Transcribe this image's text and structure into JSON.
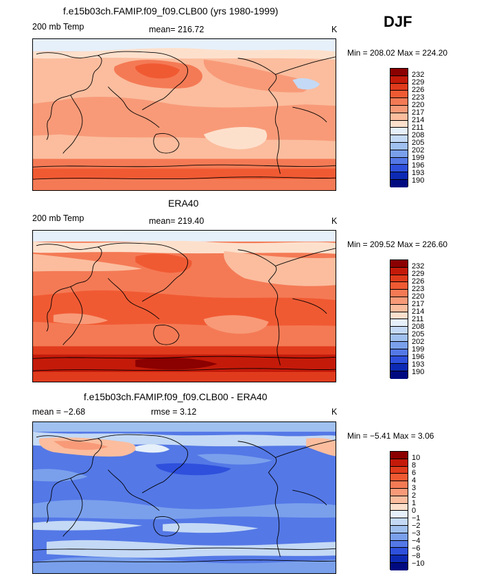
{
  "season": "DJF",
  "panels": [
    {
      "title": "f.e15b03ch.FAMIP.f09_f09.CLB00 (yrs 1980-1999)",
      "left_label": "200 mb Temp",
      "center_label": "mean= 216.72",
      "right_label": "K",
      "minmax": "Min = 208.02 Max = 224.20",
      "colorbar_labels": [
        "232",
        "229",
        "226",
        "223",
        "220",
        "217",
        "214",
        "211",
        "208",
        "205",
        "202",
        "199",
        "196",
        "193",
        "190"
      ]
    },
    {
      "title": "ERA40",
      "left_label": "200 mb Temp",
      "center_label": "mean= 219.40",
      "right_label": "K",
      "minmax": "Min = 209.52 Max = 226.60",
      "colorbar_labels": [
        "232",
        "229",
        "226",
        "223",
        "220",
        "217",
        "214",
        "211",
        "208",
        "205",
        "202",
        "199",
        "196",
        "193",
        "190"
      ]
    },
    {
      "title": "f.e15b03ch.FAMIP.f09_f09.CLB00 - ERA40",
      "left_label": "mean =  −2.68",
      "center_label": "rmse =    3.12",
      "right_label": "K",
      "minmax": "Min =  −5.41 Max =    3.06",
      "colorbar_labels": [
        "10",
        "8",
        "6",
        "4",
        "3",
        "2",
        "1",
        "0",
        "−1",
        "−2",
        "−3",
        "−4",
        "−6",
        "−8",
        "−10"
      ]
    }
  ],
  "colors": {
    "scale": [
      "#8b0000",
      "#c41a0a",
      "#e03b1c",
      "#f05a33",
      "#f47a55",
      "#f89a78",
      "#fbbd9e",
      "#fde0cc",
      "#e6f0fa",
      "#c4d9f5",
      "#a0c0f0",
      "#7aa0ec",
      "#5478e6",
      "#2e50dc",
      "#0d2ab4",
      "#000a80"
    ]
  }
}
